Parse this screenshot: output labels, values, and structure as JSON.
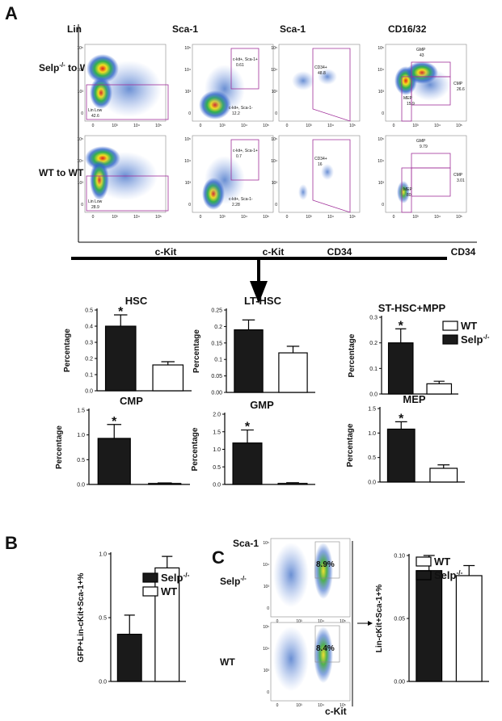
{
  "panel_labels": [
    "A",
    "B",
    "C"
  ],
  "flow": {
    "ticks": [
      "0",
      "10³",
      "10⁴",
      "10⁵"
    ],
    "headers": [
      "Lin",
      "Sca-1",
      "Sca-1",
      "CD16/32"
    ],
    "xlabels": [
      "c-Kit",
      "c-Kit",
      "CD34",
      "CD34"
    ],
    "rows": [
      {
        "name": "Selp",
        "sup": "-/-",
        "rest": " to WT"
      },
      {
        "name": "WT to WT"
      }
    ],
    "gates": [
      [
        [
          {
            "name": "Lin Low",
            "value": 42.6
          }
        ],
        [
          {
            "name": "c-kit+, Sca-1+",
            "value": 0.61
          },
          {
            "name": "c-kit+, Sca-1-",
            "value": 12.2
          }
        ],
        [
          {
            "name": "CD34+",
            "value": 48.8
          }
        ],
        [
          {
            "name": "GMP",
            "value": 43
          },
          {
            "name": "CMP",
            "value": 26.6
          },
          {
            "name": "MEP",
            "value": 15.9
          }
        ]
      ],
      [
        [
          {
            "name": "Lin Low",
            "value": 28.9
          }
        ],
        [
          {
            "name": "c-kit+, Sca-1+",
            "value": 0.7
          },
          {
            "name": "c-kit+, Sca-1-",
            "value": 2.28
          }
        ],
        [
          {
            "name": "CD34+",
            "value": 16
          }
        ],
        [
          {
            "name": "GMP",
            "value": 9.79
          },
          {
            "name": "CMP",
            "value": 3.01
          },
          {
            "name": "MEP",
            "value": 80
          }
        ]
      ]
    ]
  },
  "flow_c": {
    "ylabel": "Sca-1",
    "xlabel": "c-Kit",
    "rows": [
      {
        "name": "Selp",
        "sup": "-/-",
        "gate": "8.9%"
      },
      {
        "name": "WT",
        "gate": "8.4%"
      }
    ]
  },
  "chart_data": [
    {
      "type": "bar",
      "title": "HSC",
      "ylabel": "Percentage",
      "ylim": [
        0,
        0.5
      ],
      "yticks": [
        {
          "value": 0,
          "label": "0.0"
        },
        0.1,
        0.2,
        0.3,
        0.4,
        0.5
      ],
      "annotation": "*",
      "series": [
        {
          "color": "#1a1a1a",
          "values": [
            0.4
          ],
          "errors": [
            0.07
          ]
        },
        {
          "color": "#ffffff",
          "values": [
            0.16
          ],
          "errors": [
            0.02
          ]
        }
      ]
    },
    {
      "type": "bar",
      "title": "LT-HSC",
      "ylabel": "Percentage",
      "ylim": [
        0,
        0.25
      ],
      "yticks": [
        {
          "value": 0,
          "label": "0.00"
        },
        0.05,
        0.1,
        0.15,
        0.2,
        0.25
      ],
      "series": [
        {
          "color": "#1a1a1a",
          "values": [
            0.19
          ],
          "errors": [
            0.03
          ]
        },
        {
          "color": "#ffffff",
          "values": [
            0.12
          ],
          "errors": [
            0.02
          ]
        }
      ]
    },
    {
      "type": "bar",
      "title": "ST-HSC+MPP",
      "ylabel": "Percentage",
      "ylim": [
        0,
        0.3
      ],
      "yticks": [
        {
          "value": 0,
          "label": "0.0"
        },
        0.1,
        0.2,
        0.3
      ],
      "annotation": "*",
      "legend": [
        {
          "name": "WT",
          "color": "#ffffff"
        },
        {
          "name": "Selp",
          "sup": "-/-",
          "color": "#1a1a1a"
        }
      ],
      "series": [
        {
          "color": "#1a1a1a",
          "values": [
            0.2
          ],
          "errors": [
            0.055
          ]
        },
        {
          "color": "#ffffff",
          "values": [
            0.04
          ],
          "errors": [
            0.01
          ]
        }
      ]
    },
    {
      "type": "bar",
      "title": "CMP",
      "ylabel": "Percentage",
      "ylim": [
        0,
        1.5
      ],
      "yticks": [
        {
          "value": 0,
          "label": "0.0"
        },
        0.5,
        {
          "value": 1,
          "label": "1.0"
        },
        1.5
      ],
      "annotation": "*",
      "series": [
        {
          "color": "#1a1a1a",
          "values": [
            0.93
          ],
          "errors": [
            0.28
          ]
        },
        {
          "color": "#ffffff",
          "values": [
            0.02
          ],
          "errors": [
            0.01
          ]
        }
      ]
    },
    {
      "type": "bar",
      "title": "GMP",
      "ylabel": "Percentage",
      "ylim": [
        0,
        2.0
      ],
      "yticks": [
        {
          "value": 0,
          "label": "0.0"
        },
        0.5,
        {
          "value": 1,
          "label": "1.0"
        },
        1.5,
        {
          "value": 2,
          "label": "2.0"
        }
      ],
      "annotation": "*",
      "series": [
        {
          "color": "#1a1a1a",
          "values": [
            1.18
          ],
          "errors": [
            0.37
          ]
        },
        {
          "color": "#ffffff",
          "values": [
            0.03
          ],
          "errors": [
            0.02
          ]
        }
      ]
    },
    {
      "type": "bar",
      "title": "MEP",
      "ylabel": "Percentage",
      "ylim": [
        0,
        1.5
      ],
      "yticks": [
        {
          "value": 0,
          "label": "0.0"
        },
        0.5,
        {
          "value": 1,
          "label": "1.0"
        },
        1.5
      ],
      "annotation": "*",
      "series": [
        {
          "color": "#1a1a1a",
          "values": [
            1.08
          ],
          "errors": [
            0.15
          ]
        },
        {
          "color": "#ffffff",
          "values": [
            0.28
          ],
          "errors": [
            0.07
          ]
        }
      ]
    },
    {
      "type": "bar",
      "ylabel": "GFP+Lin-cKit+Sca-1+%",
      "ylim": [
        0,
        1.0
      ],
      "yticks": [
        {
          "value": 0,
          "label": "0.0"
        },
        0.5,
        {
          "value": 1,
          "label": "1.0"
        }
      ],
      "legend": [
        {
          "name": "Selp",
          "sup": "-/-",
          "color": "#1a1a1a"
        },
        {
          "name": "WT",
          "color": "#ffffff"
        }
      ],
      "series": [
        {
          "color": "#1a1a1a",
          "values": [
            0.37
          ],
          "errors": [
            0.15
          ]
        },
        {
          "color": "#ffffff",
          "values": [
            0.89
          ],
          "errors": [
            0.09
          ]
        }
      ]
    },
    {
      "type": "bar",
      "ylabel": "Lin-cKit+Sca-1+%",
      "ylim": [
        0,
        0.1
      ],
      "yticks": [
        {
          "value": 0,
          "label": "0.00"
        },
        0.05,
        {
          "value": 0.1,
          "label": "0.10"
        }
      ],
      "legend": [
        {
          "name": "WT",
          "color": "#ffffff"
        },
        {
          "name": "Selp",
          "sup": "-/-",
          "color": "#1a1a1a"
        }
      ],
      "series": [
        {
          "color": "#1a1a1a",
          "values": [
            0.088
          ],
          "errors": [
            0.012
          ]
        },
        {
          "color": "#ffffff",
          "values": [
            0.084
          ],
          "errors": [
            0.008
          ]
        }
      ]
    }
  ]
}
